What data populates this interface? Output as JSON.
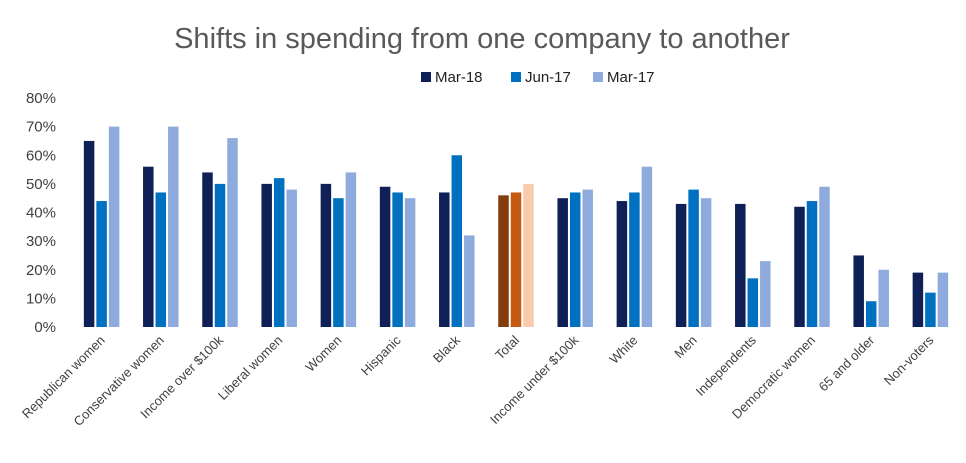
{
  "chart_data": {
    "type": "bar",
    "title": "Shifts in spending from one company to another",
    "xlabel": "",
    "ylabel": "",
    "ylim": [
      0,
      80
    ],
    "yticks": [
      "0%",
      "10%",
      "20%",
      "30%",
      "40%",
      "50%",
      "60%",
      "70%",
      "80%"
    ],
    "grid": false,
    "legend_position": "top",
    "categories": [
      "Republican women",
      "Conservative women",
      "Income over $100k",
      "Liberal women",
      "Women",
      "Hispanic",
      "Black",
      "Total",
      "Income under $100k",
      "White",
      "Men",
      "Independents",
      "Democratic women",
      "65 and older",
      "Non-voters"
    ],
    "series": [
      {
        "name": "Mar-18",
        "color": "#0f2057",
        "values": [
          65,
          56,
          54,
          50,
          50,
          49,
          47,
          46,
          45,
          44,
          43,
          43,
          42,
          25,
          19
        ]
      },
      {
        "name": "Jun-17",
        "color": "#0070c0",
        "values": [
          44,
          47,
          50,
          52,
          45,
          47,
          60,
          47,
          47,
          47,
          48,
          17,
          44,
          9,
          12
        ]
      },
      {
        "name": "Mar-17",
        "color": "#8faadc",
        "values": [
          70,
          70,
          66,
          48,
          54,
          45,
          32,
          50,
          48,
          56,
          45,
          23,
          49,
          20,
          19
        ]
      }
    ],
    "highlight": {
      "category": "Total",
      "colors": [
        "#843c0c",
        "#c55a11",
        "#f8cbad"
      ]
    }
  }
}
